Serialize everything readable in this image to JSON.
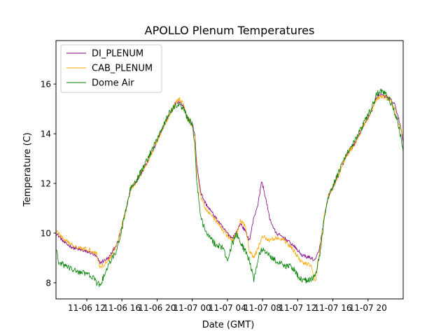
{
  "chart_data": {
    "type": "line",
    "title": "APOLLO Plenum Temperatures",
    "xlabel": "Date (GMT)",
    "ylabel": "Temperature (C)",
    "xlim": [
      0,
      39.5
    ],
    "ylim": [
      7.35,
      17.75
    ],
    "grid": false,
    "legend_position": "upper-left",
    "yticks": [
      8,
      10,
      12,
      14,
      16
    ],
    "ytick_labels": [
      "8",
      "10",
      "12",
      "14",
      "16"
    ],
    "xticks": [
      {
        "t": 3.5,
        "label": "11-06 12"
      },
      {
        "t": 7.5,
        "label": "11-06 16"
      },
      {
        "t": 11.5,
        "label": "11-06 20"
      },
      {
        "t": 15.5,
        "label": "11-07 00"
      },
      {
        "t": 19.5,
        "label": "11-07 04"
      },
      {
        "t": 23.5,
        "label": "11-07 08"
      },
      {
        "t": 27.5,
        "label": "11-07 12"
      },
      {
        "t": 31.5,
        "label": "11-07 16"
      },
      {
        "t": 35.5,
        "label": "11-07 20"
      }
    ],
    "series": [
      {
        "name": "DI_PLENUM",
        "color": "#800080",
        "noise": 0.07,
        "points": [
          [
            0,
            10.0
          ],
          [
            0.5,
            9.8
          ],
          [
            1,
            9.6
          ],
          [
            2,
            9.4
          ],
          [
            3,
            9.3
          ],
          [
            4,
            9.2
          ],
          [
            4.6,
            9.05
          ],
          [
            5,
            8.8
          ],
          [
            6,
            9.0
          ],
          [
            7,
            9.6
          ],
          [
            7.5,
            10.3
          ],
          [
            8,
            11.0
          ],
          [
            8.5,
            11.8
          ],
          [
            9,
            12.0
          ],
          [
            10,
            12.6
          ],
          [
            11,
            13.3
          ],
          [
            12,
            14.1
          ],
          [
            13,
            14.8
          ],
          [
            13.5,
            15.2
          ],
          [
            14,
            15.3
          ],
          [
            14.5,
            15.1
          ],
          [
            15,
            14.6
          ],
          [
            15.5,
            14.4
          ],
          [
            15.8,
            14.0
          ],
          [
            16,
            12.8
          ],
          [
            16.5,
            11.6
          ],
          [
            17,
            11.2
          ],
          [
            18,
            10.7
          ],
          [
            19,
            10.2
          ],
          [
            20,
            9.8
          ],
          [
            20.5,
            10.0
          ],
          [
            21,
            10.4
          ],
          [
            21.5,
            10.1
          ],
          [
            22,
            9.7
          ],
          [
            22.5,
            10.6
          ],
          [
            23,
            11.2
          ],
          [
            23.4,
            12.1
          ],
          [
            23.8,
            11.5
          ],
          [
            24.3,
            10.6
          ],
          [
            25,
            10.0
          ],
          [
            26,
            9.8
          ],
          [
            27,
            9.5
          ],
          [
            28,
            9.1
          ],
          [
            29,
            9.0
          ],
          [
            29.5,
            8.9
          ],
          [
            30,
            9.4
          ],
          [
            30.5,
            10.6
          ],
          [
            31,
            11.5
          ],
          [
            32,
            12.2
          ],
          [
            33,
            13.1
          ],
          [
            34,
            13.6
          ],
          [
            35,
            14.3
          ],
          [
            36,
            15.0
          ],
          [
            36.5,
            15.5
          ],
          [
            37,
            15.6
          ],
          [
            38,
            15.4
          ],
          [
            38.5,
            15.2
          ],
          [
            39,
            14.6
          ],
          [
            39.5,
            13.7
          ]
        ]
      },
      {
        "name": "CAB_PLENUM",
        "color": "#ffa500",
        "noise": 0.09,
        "points": [
          [
            0,
            10.1
          ],
          [
            0.5,
            9.9
          ],
          [
            1,
            9.7
          ],
          [
            2,
            9.5
          ],
          [
            3,
            9.4
          ],
          [
            4,
            9.3
          ],
          [
            4.6,
            9.2
          ],
          [
            5,
            8.6
          ],
          [
            6,
            8.9
          ],
          [
            7,
            9.6
          ],
          [
            7.5,
            10.3
          ],
          [
            8,
            11.0
          ],
          [
            8.5,
            11.8
          ],
          [
            9,
            12.0
          ],
          [
            10,
            12.6
          ],
          [
            11,
            13.3
          ],
          [
            12,
            14.1
          ],
          [
            13,
            14.8
          ],
          [
            13.5,
            15.2
          ],
          [
            14,
            15.4
          ],
          [
            14.5,
            15.2
          ],
          [
            15,
            14.6
          ],
          [
            15.5,
            14.3
          ],
          [
            15.8,
            13.8
          ],
          [
            16,
            12.5
          ],
          [
            16.5,
            11.4
          ],
          [
            17,
            11.0
          ],
          [
            18,
            10.6
          ],
          [
            19,
            10.1
          ],
          [
            20,
            9.7
          ],
          [
            20.5,
            9.9
          ],
          [
            21,
            10.5
          ],
          [
            21.5,
            10.3
          ],
          [
            22,
            9.3
          ],
          [
            22.5,
            9.0
          ],
          [
            23,
            9.4
          ],
          [
            23.5,
            9.9
          ],
          [
            24,
            9.7
          ],
          [
            25,
            9.8
          ],
          [
            26,
            9.7
          ],
          [
            27,
            9.3
          ],
          [
            28,
            8.8
          ],
          [
            29,
            8.7
          ],
          [
            29.5,
            8.0
          ],
          [
            30,
            9.3
          ],
          [
            30.5,
            10.6
          ],
          [
            31,
            11.5
          ],
          [
            32,
            12.2
          ],
          [
            33,
            13.1
          ],
          [
            34,
            13.6
          ],
          [
            35,
            14.3
          ],
          [
            36,
            15.0
          ],
          [
            36.5,
            15.4
          ],
          [
            37,
            15.5
          ],
          [
            38,
            15.4
          ],
          [
            38.5,
            15.0
          ],
          [
            39,
            14.4
          ],
          [
            39.5,
            13.9
          ]
        ]
      },
      {
        "name": "Dome Air",
        "color": "#008000",
        "noise": 0.13,
        "points": [
          [
            0,
            9.4
          ],
          [
            0.3,
            8.8
          ],
          [
            1,
            8.7
          ],
          [
            2,
            8.5
          ],
          [
            3,
            8.4
          ],
          [
            4,
            8.3
          ],
          [
            4.6,
            8.0
          ],
          [
            5,
            7.9
          ],
          [
            5.5,
            8.3
          ],
          [
            6,
            8.7
          ],
          [
            7,
            9.4
          ],
          [
            7.5,
            10.2
          ],
          [
            8,
            11.0
          ],
          [
            8.5,
            11.8
          ],
          [
            9,
            12.0
          ],
          [
            10,
            12.7
          ],
          [
            11,
            13.4
          ],
          [
            12,
            14.2
          ],
          [
            13,
            14.9
          ],
          [
            13.5,
            15.1
          ],
          [
            14,
            15.2
          ],
          [
            14.5,
            15.0
          ],
          [
            15,
            14.6
          ],
          [
            15.5,
            14.4
          ],
          [
            15.8,
            13.6
          ],
          [
            16,
            12.1
          ],
          [
            16.5,
            10.6
          ],
          [
            17,
            10.1
          ],
          [
            18,
            9.6
          ],
          [
            19,
            9.4
          ],
          [
            19.5,
            8.9
          ],
          [
            20,
            9.5
          ],
          [
            20.5,
            10.0
          ],
          [
            21,
            9.6
          ],
          [
            21.5,
            9.3
          ],
          [
            22,
            8.9
          ],
          [
            22.5,
            8.1
          ],
          [
            23,
            9.0
          ],
          [
            23.5,
            9.4
          ],
          [
            24,
            9.2
          ],
          [
            25,
            8.9
          ],
          [
            26,
            8.7
          ],
          [
            27,
            8.6
          ],
          [
            27.5,
            8.3
          ],
          [
            28,
            8.1
          ],
          [
            29,
            8.1
          ],
          [
            29.5,
            8.3
          ],
          [
            30,
            9.1
          ],
          [
            30.5,
            10.5
          ],
          [
            31,
            11.5
          ],
          [
            32,
            12.3
          ],
          [
            33,
            13.2
          ],
          [
            34,
            13.7
          ],
          [
            35,
            14.4
          ],
          [
            36,
            15.1
          ],
          [
            36.5,
            15.6
          ],
          [
            37,
            15.7
          ],
          [
            37.5,
            15.6
          ],
          [
            38,
            15.3
          ],
          [
            38.5,
            14.9
          ],
          [
            39,
            14.3
          ],
          [
            39.5,
            13.3
          ]
        ]
      }
    ]
  }
}
